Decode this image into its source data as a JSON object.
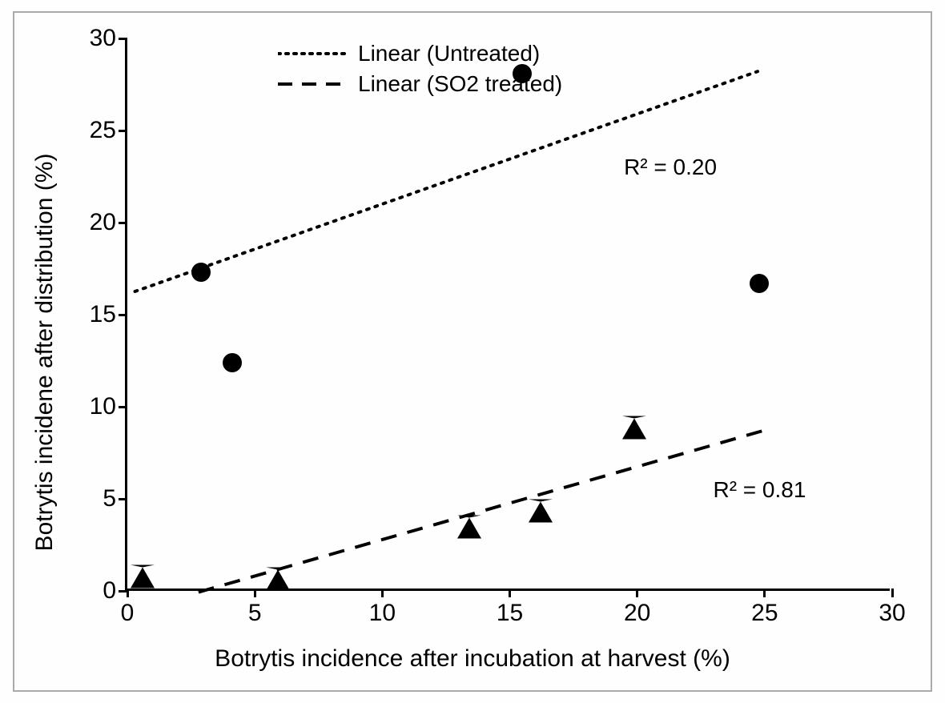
{
  "chart": {
    "type": "scatter",
    "background_color": "#fefefe",
    "border_color": "#aaaaaa",
    "axis_color": "#000000",
    "text_color": "#000000",
    "axis_line_width": 3,
    "tick_font_size": 30,
    "title_font_size": 30,
    "legend_font_size": 28,
    "r2_font_size": 28,
    "xlim": [
      0,
      30
    ],
    "ylim": [
      0,
      30
    ],
    "xticks": [
      0,
      5,
      10,
      15,
      20,
      25,
      30
    ],
    "yticks": [
      0,
      5,
      10,
      15,
      20,
      25,
      30
    ],
    "xlabel": "Botrytis incidence after incubation at harvest (%)",
    "ylabel": "Botrytis incidene after distribution (%)",
    "series": [
      {
        "name": "Untreated",
        "marker": "circle",
        "marker_size": 24,
        "marker_color": "#000000",
        "points": [
          {
            "x": 2.9,
            "y": 17.3
          },
          {
            "x": 4.1,
            "y": 12.4
          },
          {
            "x": 15.5,
            "y": 28.1
          },
          {
            "x": 24.8,
            "y": 16.7
          }
        ],
        "trend": {
          "type": "linear",
          "dash": "dotted",
          "width": 4,
          "color": "#000000",
          "x1": 0.3,
          "y1": 16.2,
          "x2": 24.8,
          "y2": 28.2
        },
        "r2_label": "R² = 0.20",
        "r2_value": 0.2,
        "r2_pos": {
          "x": 21.3,
          "y": 23.0
        }
      },
      {
        "name": "SO2 treated",
        "marker": "triangle",
        "marker_size": 26,
        "marker_color": "#000000",
        "points": [
          {
            "x": 0.6,
            "y": 0.6
          },
          {
            "x": 5.9,
            "y": 0.5
          },
          {
            "x": 13.4,
            "y": 3.3
          },
          {
            "x": 16.2,
            "y": 4.2
          },
          {
            "x": 19.9,
            "y": 8.7
          }
        ],
        "trend": {
          "type": "linear",
          "dash": "dashed",
          "width": 4,
          "color": "#000000",
          "x1": 2.8,
          "y1": -0.2,
          "x2": 25.0,
          "y2": 8.6
        },
        "r2_label": "R² = 0.81",
        "r2_value": 0.81,
        "r2_pos": {
          "x": 24.8,
          "y": 5.5
        }
      }
    ],
    "legend": {
      "position": "top-left-inside",
      "items": [
        {
          "label": "Linear (Untreated)",
          "dash": "dotted"
        },
        {
          "label": "Linear (SO2 treated)",
          "dash": "dashed"
        }
      ]
    }
  }
}
